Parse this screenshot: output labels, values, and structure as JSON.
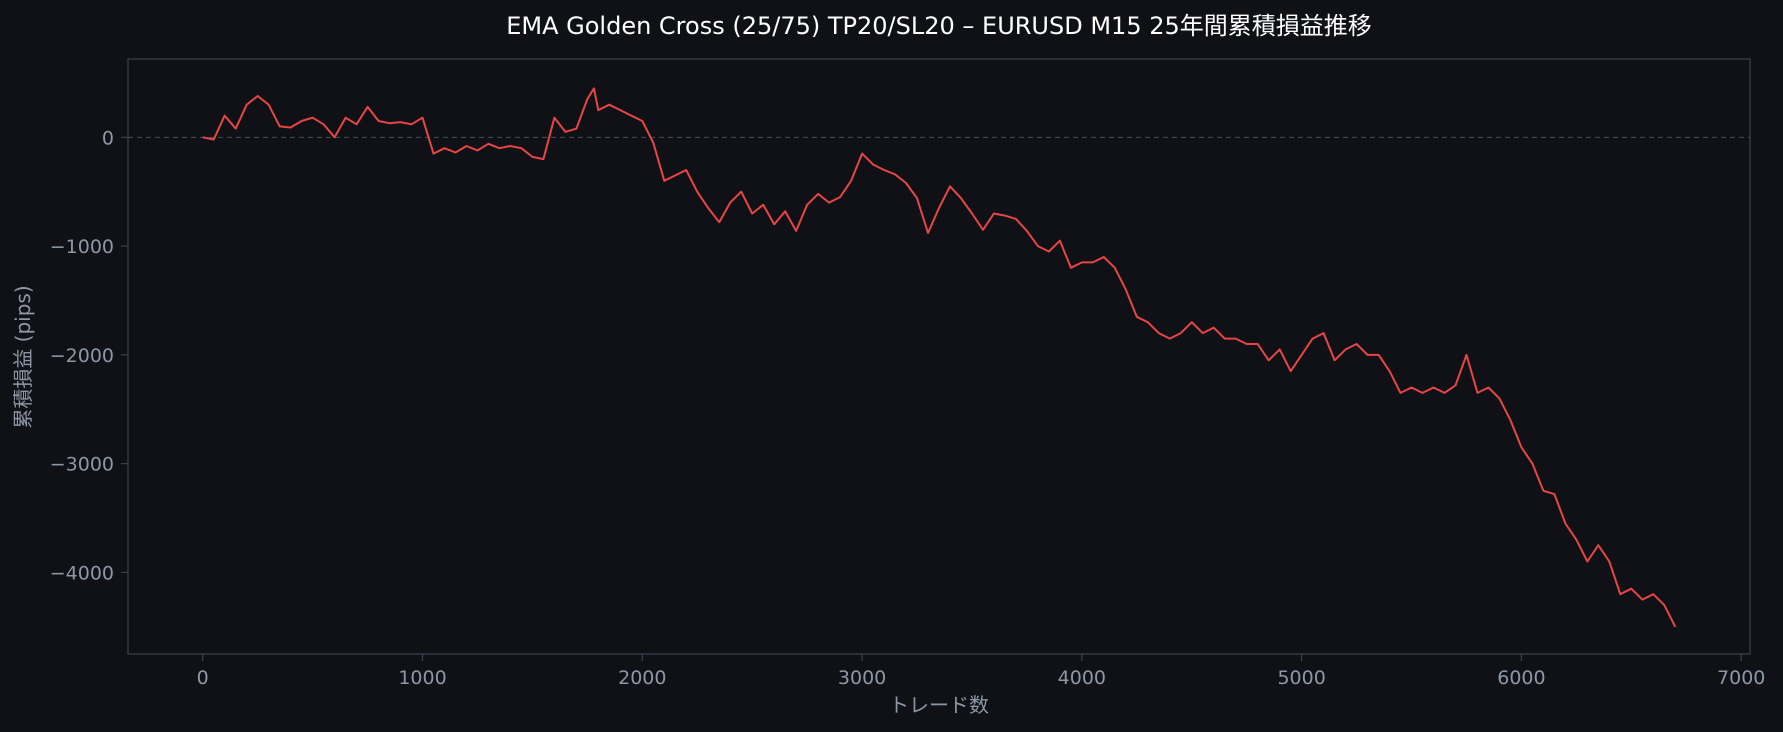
{
  "chart_data": {
    "type": "line",
    "title": "EMA Golden Cross (25/75) TP20/SL20 – EURUSD M15 25年間累積損益推移",
    "xlabel": "トレード数",
    "ylabel": "累積損益 (pips)",
    "xlim": [
      -340,
      7040
    ],
    "ylim": [
      -4750,
      720
    ],
    "xticks": [
      0,
      1000,
      2000,
      3000,
      4000,
      5000,
      6000,
      7000
    ],
    "yticks": [
      0,
      -1000,
      -2000,
      -3000,
      -4000
    ],
    "ytick_labels": [
      "0",
      "−1000",
      "−2000",
      "−3000",
      "−4000"
    ],
    "grid": false,
    "zero_line": true,
    "series": [
      {
        "color": "#e84545",
        "x": [
          0,
          50,
          100,
          150,
          200,
          250,
          300,
          350,
          400,
          450,
          500,
          550,
          600,
          650,
          700,
          750,
          800,
          850,
          900,
          950,
          1000,
          1050,
          1100,
          1150,
          1200,
          1250,
          1300,
          1350,
          1400,
          1450,
          1500,
          1550,
          1600,
          1650,
          1700,
          1750,
          1780,
          1800,
          1850,
          1900,
          1950,
          2000,
          2050,
          2100,
          2150,
          2200,
          2250,
          2300,
          2350,
          2400,
          2450,
          2500,
          2550,
          2600,
          2650,
          2700,
          2750,
          2800,
          2850,
          2900,
          2950,
          3000,
          3050,
          3100,
          3150,
          3200,
          3250,
          3300,
          3350,
          3400,
          3450,
          3500,
          3550,
          3600,
          3650,
          3700,
          3750,
          3800,
          3850,
          3900,
          3950,
          4000,
          4050,
          4100,
          4150,
          4200,
          4250,
          4300,
          4350,
          4400,
          4450,
          4500,
          4550,
          4600,
          4650,
          4700,
          4750,
          4800,
          4850,
          4900,
          4950,
          5000,
          5050,
          5100,
          5150,
          5200,
          5250,
          5300,
          5350,
          5400,
          5450,
          5500,
          5550,
          5600,
          5650,
          5700,
          5750,
          5800,
          5850,
          5900,
          5950,
          6000,
          6050,
          6100,
          6150,
          6200,
          6250,
          6300,
          6350,
          6400,
          6450,
          6500,
          6550,
          6600,
          6650,
          6700
        ],
        "y": [
          0,
          -20,
          200,
          80,
          300,
          380,
          300,
          100,
          90,
          150,
          180,
          120,
          0,
          180,
          120,
          280,
          150,
          130,
          140,
          120,
          180,
          -150,
          -100,
          -140,
          -80,
          -120,
          -60,
          -100,
          -80,
          -100,
          -180,
          -200,
          180,
          50,
          80,
          350,
          450,
          250,
          300,
          250,
          200,
          150,
          -50,
          -400,
          -350,
          -300,
          -500,
          -650,
          -780,
          -600,
          -500,
          -700,
          -620,
          -800,
          -680,
          -860,
          -620,
          -520,
          -600,
          -550,
          -400,
          -150,
          -250,
          -300,
          -340,
          -420,
          -560,
          -880,
          -650,
          -450,
          -560,
          -700,
          -850,
          -700,
          -720,
          -750,
          -860,
          -1000,
          -1050,
          -950,
          -1200,
          -1150,
          -1150,
          -1100,
          -1200,
          -1400,
          -1650,
          -1700,
          -1800,
          -1850,
          -1800,
          -1700,
          -1800,
          -1750,
          -1850,
          -1850,
          -1900,
          -1900,
          -2050,
          -1950,
          -2150,
          -2000,
          -1850,
          -1800,
          -2050,
          -1950,
          -1900,
          -2000,
          -2000,
          -2150,
          -2350,
          -2300,
          -2350,
          -2300,
          -2350,
          -2280,
          -2000,
          -2350,
          -2300,
          -2400,
          -2600,
          -2850,
          -3000,
          -3250,
          -3280,
          -3550,
          -3700,
          -3900,
          -3750,
          -3900,
          -4200,
          -4150,
          -4250,
          -4200,
          -4300,
          -4500
        ]
      }
    ]
  }
}
